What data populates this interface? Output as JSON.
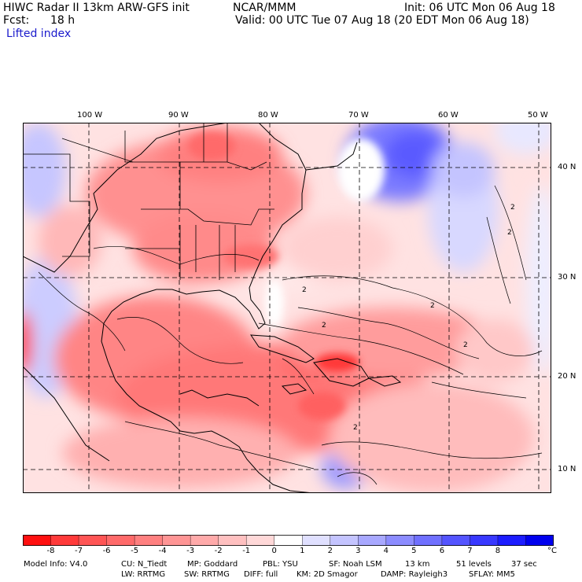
{
  "header": {
    "model": "HIWC Radar II 13km ARW-GFS init",
    "org": "NCAR/MMM",
    "init": "Init: 06 UTC Mon 06 Aug 18",
    "fcst_label": "Fcst:",
    "fcst_value": "18 h",
    "valid": "Valid: 00 UTC Tue 07 Aug 18 (20 EDT Mon 06 Aug 18)",
    "field": "Lifted index"
  },
  "map": {
    "lon_labels": [
      "100 W",
      "90 W",
      "80 W",
      "70 W",
      "60 W",
      "50 W"
    ],
    "lat_labels": [
      "40 N",
      "30 N",
      "20 N",
      "10 N"
    ],
    "contour_labels": [
      "2",
      "2",
      "2",
      "2",
      "2",
      "2",
      "2"
    ]
  },
  "colorbar": {
    "unit": "°C",
    "tick_labels": [
      "-8",
      "-7",
      "-6",
      "-5",
      "-4",
      "-3",
      "-2",
      "-1",
      "0",
      "1",
      "2",
      "3",
      "4",
      "5",
      "6",
      "7",
      "8"
    ],
    "colors": [
      "#ff1010",
      "#ff3a3a",
      "#ff5555",
      "#ff6a6a",
      "#ff8080",
      "#ff9595",
      "#ffaaaa",
      "#ffc0c0",
      "#ffd8d8",
      "#ffffff",
      "#e0e0ff",
      "#c4c4ff",
      "#a8a8ff",
      "#8c8cff",
      "#7070ff",
      "#5454ff",
      "#3838ff",
      "#1c1cff",
      "#0000ee"
    ]
  },
  "footer": {
    "line1": [
      "Model Info: V4.0",
      "CU: N_Tiedt",
      "MP: Goddard",
      "PBL: YSU",
      "SF: Noah LSM",
      "13 km",
      "51 levels",
      "37 sec"
    ],
    "line2": [
      "LW: RRTMG",
      "SW: RRTMG",
      "DIFF: full",
      "KM: 2D Smagor",
      "DAMP: Rayleigh3",
      "SFLAY: MM5"
    ]
  }
}
